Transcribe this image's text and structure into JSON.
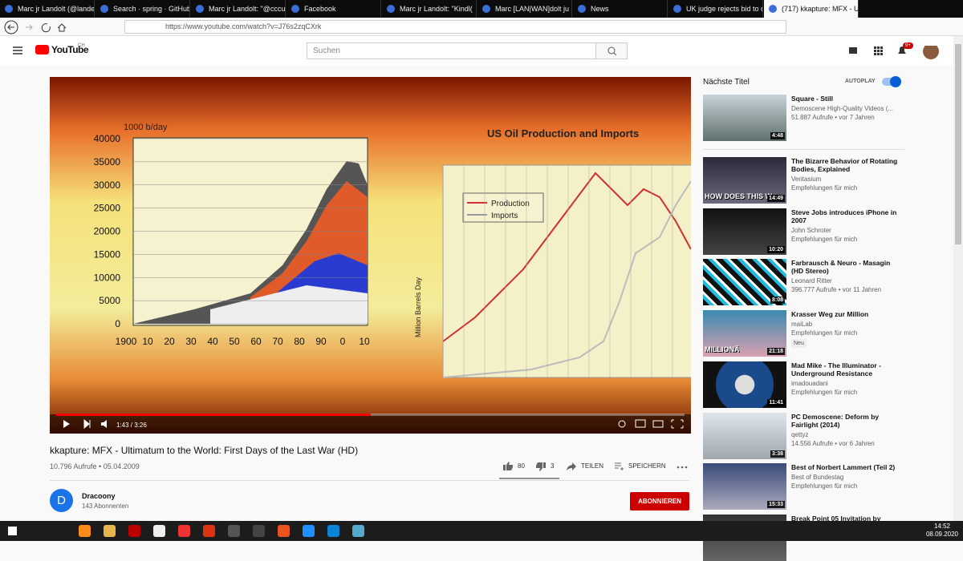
{
  "browser": {
    "tabs": [
      "Marc jr Landolt (@lande",
      "Search · spring · GitHub",
      "Marc jr Landolt: \"@cccu",
      "Facebook",
      "Marc jr Landolt: \"Kindl(",
      "Marc [LAN|WAN]dolt ju",
      "News",
      "UK judge rejects bid to d",
      "(717) kkapture: MFX - U"
    ],
    "url": "https://www.youtube.com/watch?v=J76s2zqCXrk"
  },
  "youtube": {
    "logo": "YouTube",
    "region": "CH",
    "search_placeholder": "Suchen",
    "notifications": "9+"
  },
  "video": {
    "frame": {
      "left_unit": "1000 b/day",
      "left_yticks": [
        "40000",
        "35000",
        "30000",
        "25000",
        "20000",
        "15000",
        "10000",
        "5000",
        "0"
      ],
      "left_xticks": [
        "1900",
        "10",
        "20",
        "30",
        "40",
        "50",
        "60",
        "70",
        "80",
        "90",
        "0",
        "10"
      ],
      "right_title": "US Oil Production and Imports",
      "legend": [
        "Production",
        "Imports"
      ],
      "right_axis": "Million Barrels Day"
    },
    "time": "1:43 / 3:26",
    "title": "kkapture: MFX - Ultimatum to the World: First Days of the Last War (HD)",
    "meta": "10.796 Aufrufe • 05.04.2009",
    "likes": "80",
    "dislikes": "3",
    "share": "TEILEN",
    "save": "SPEICHERN"
  },
  "channel": {
    "avatar": "D",
    "name": "Dracoony",
    "subscribers": "143 Abonnenten",
    "subscribe": "ABONNIEREN"
  },
  "sidebar": {
    "heading": "Nächste Titel",
    "autoplay": "AUTOPLAY",
    "items": [
      {
        "title": "Square - Still",
        "channel": "Demoscene High-Quality Videos (...",
        "meta": "51.887 Aufrufe • vor 7 Jahren",
        "duration": "4:48"
      },
      {
        "title": "The Bizarre Behavior of Rotating Bodies, Explained",
        "channel": "Veritasium",
        "meta": "Empfehlungen für mich",
        "duration": "14:49",
        "thumb_text": "HOW DOES THIS W"
      },
      {
        "title": "Steve Jobs introduces iPhone in 2007",
        "channel": "John Schroter",
        "meta": "Empfehlungen für mich",
        "duration": "10:20"
      },
      {
        "title": "Farbrausch & Neuro - Masagin (HD Stereo)",
        "channel": "Leonard Ritter",
        "meta": "396.777 Aufrufe • vor 11 Jahren",
        "duration": "8:08"
      },
      {
        "title": "Krasser Weg zur Million",
        "channel": "maiLab",
        "meta": "Empfehlungen für mich",
        "badge": "Neu",
        "duration": "21:18",
        "thumb_text": "MILLIONÄ"
      },
      {
        "title": "Mad Mike - The Illuminator - Underground Resistance",
        "channel": "imadouadani",
        "meta": "Empfehlungen für mich",
        "duration": "11:41"
      },
      {
        "title": "PC Demoscene: Deform by Fairlight (2014)",
        "channel": "qettyz",
        "meta": "14.556 Aufrufe • vor 6 Jahren",
        "duration": "3:38"
      },
      {
        "title": "Best of Norbert Lammert (Teil 2)",
        "channel": "Best of Bundestag",
        "meta": "Empfehlungen für mich",
        "duration": "15:33"
      },
      {
        "title": "Break Point 05 Invitation by"
      }
    ]
  },
  "taskbar": {
    "time": "14:52",
    "date": "08.09.2020"
  }
}
